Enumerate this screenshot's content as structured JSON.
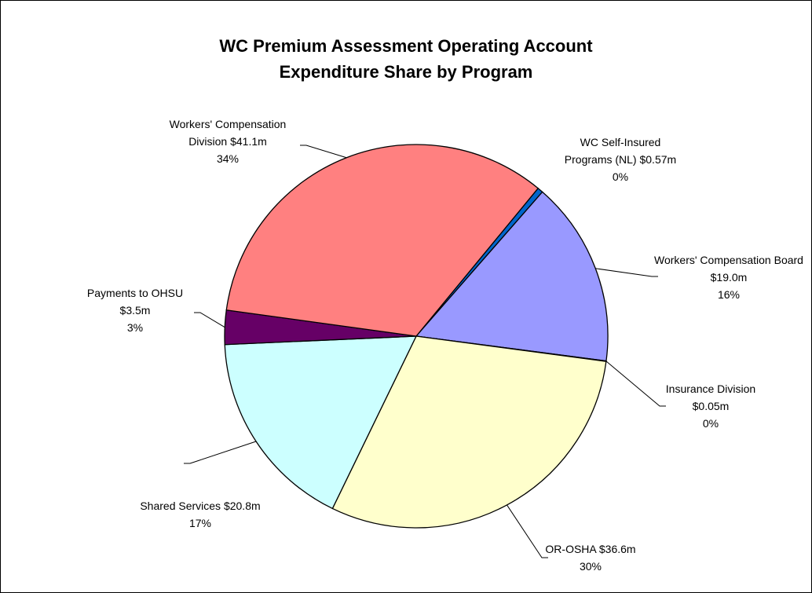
{
  "chart_data": {
    "type": "pie",
    "title": [
      "WC Premium Assessment Operating Account",
      "Expenditure Share by Program"
    ],
    "categories": [
      "WC Self-Insured Programs (NL)",
      "Workers' Compensation Board",
      "Insurance Division",
      "OR-OSHA",
      "Shared Services",
      "Payments to OHSU",
      "Workers' Compensation Division"
    ],
    "values": [
      0.57,
      19.0,
      0.05,
      36.6,
      20.8,
      3.5,
      41.1
    ],
    "value_labels": [
      "$0.57m",
      "$19.0m",
      "$0.05m",
      "$36.6m",
      "$20.8m",
      "$3.5m",
      "$41.1m"
    ],
    "percent_labels": [
      "0%",
      "16%",
      "0%",
      "30%",
      "17%",
      "3%",
      "34%"
    ],
    "colors": [
      "#0066cc",
      "#9999ff",
      "#993366",
      "#ffffcc",
      "#ccffff",
      "#660066",
      "#ff8080"
    ]
  }
}
